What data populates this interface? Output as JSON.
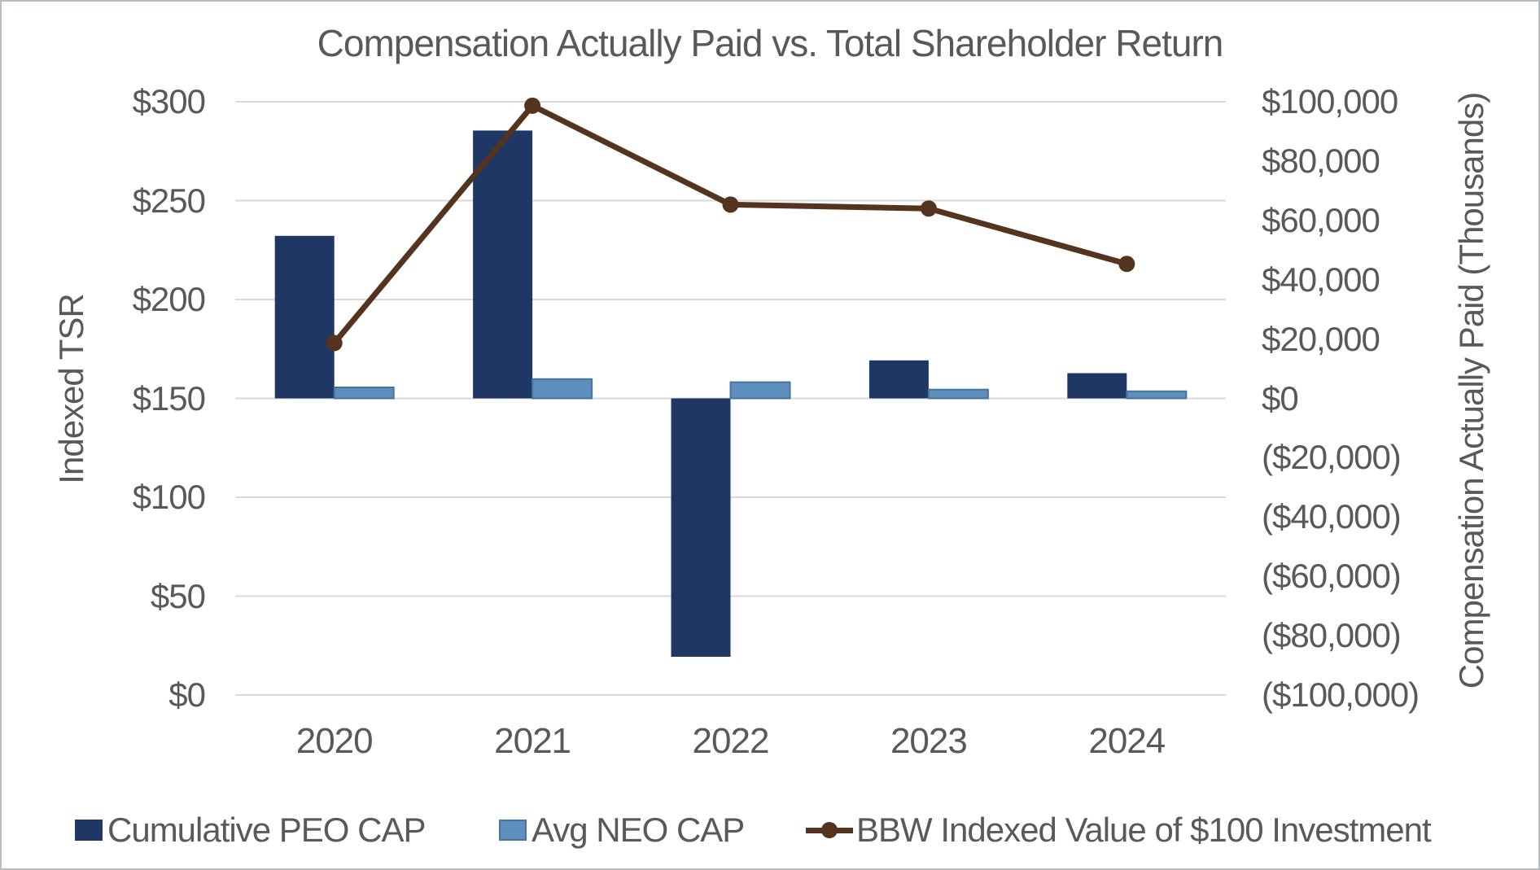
{
  "chart_data": {
    "type": "combo",
    "title": "Compensation Actually Paid vs. Total Shareholder Return",
    "categories": [
      "2020",
      "2021",
      "2022",
      "2023",
      "2024"
    ],
    "left_axis": {
      "title": "Indexed TSR",
      "min": 0,
      "max": 300,
      "step": 50,
      "tick_labels_top_to_bottom": [
        "$300",
        "$250",
        "$200",
        "$150",
        "$100",
        "$50",
        "$0"
      ]
    },
    "right_axis": {
      "title": "Compensation Actually Paid (Thousands)",
      "min": -100000,
      "max": 100000,
      "step": 20000,
      "tick_labels_top_to_bottom": [
        "$100,000",
        "$80,000",
        "$60,000",
        "$40,000",
        "$20,000",
        "$0",
        "($20,000)",
        "($40,000)",
        "($60,000)",
        "($80,000)",
        "($100,000)"
      ]
    },
    "series": [
      {
        "name": "Cumulative PEO CAP",
        "type": "bar",
        "axis": "right",
        "color": "#1E3765",
        "values": [
          54800,
          90300,
          -87100,
          12800,
          8500
        ]
      },
      {
        "name": "Avg NEO CAP",
        "type": "bar",
        "axis": "right",
        "color": "#5E8EBC",
        "border_color": "#46749F",
        "values": [
          3700,
          6500,
          5450,
          2950,
          2400
        ]
      },
      {
        "name": "BBW Indexed Value of $100 Investment",
        "type": "line",
        "axis": "left",
        "color": "#54341F",
        "values": [
          178,
          298,
          248,
          246,
          218
        ]
      }
    ],
    "legend_position": "bottom",
    "grid": "horizontal",
    "gridline_color": "#D9D9D9",
    "text_color": "#595959"
  }
}
